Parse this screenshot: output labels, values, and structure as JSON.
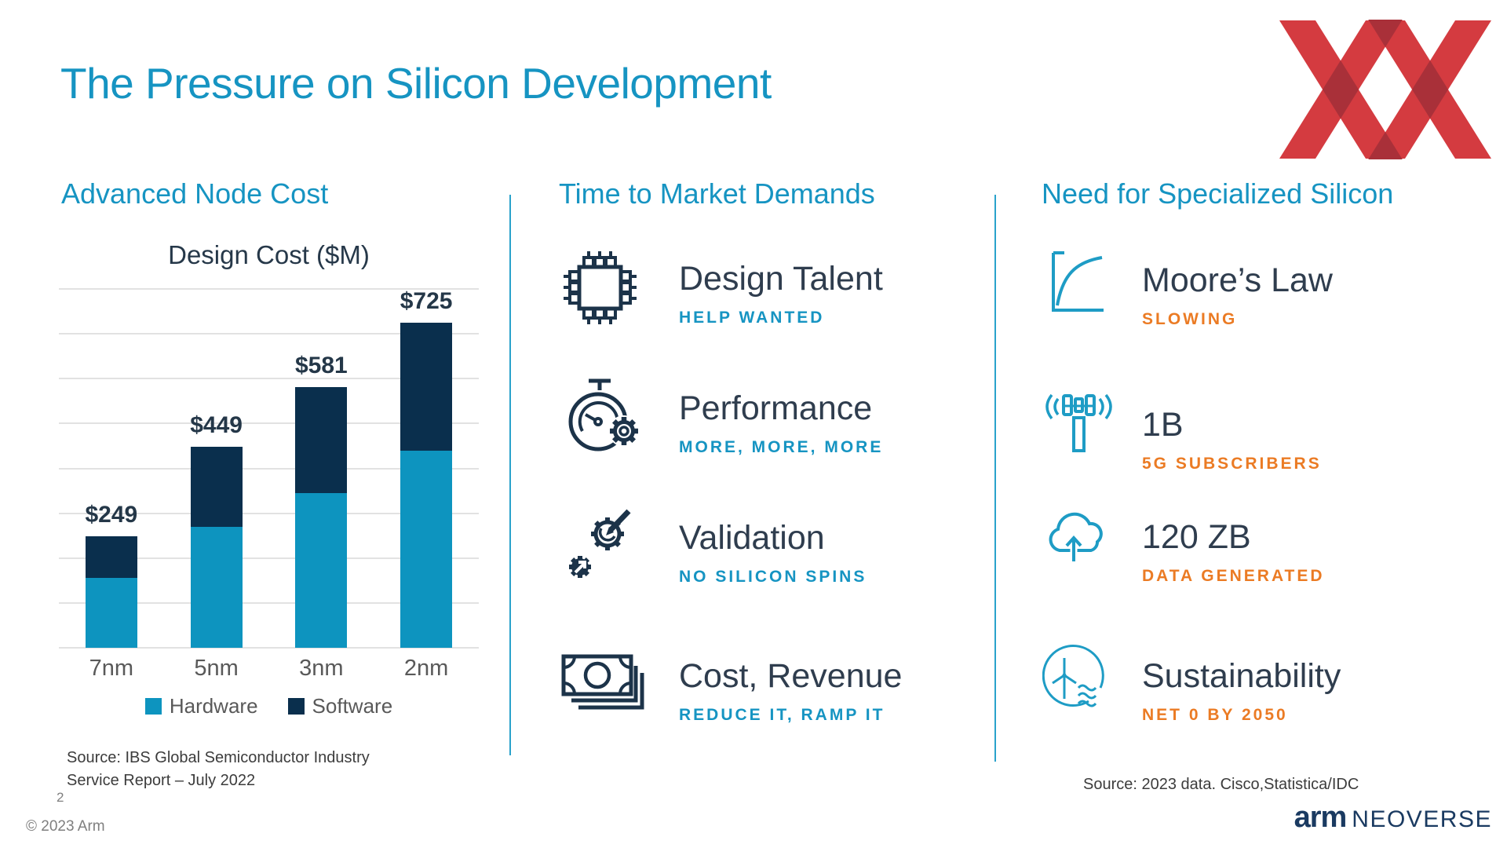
{
  "slide": {
    "title": "The Pressure on Silicon Development",
    "page_number": "2",
    "copyright": "© 2023 Arm",
    "brand": {
      "arm": "arm",
      "suffix": "NEOVERSE"
    }
  },
  "colors": {
    "accent_blue": "#1694C2",
    "dark_text": "#2F3D4E",
    "orange": "#EB7B24",
    "gray_text": "#595959",
    "footer_gray": "#7F7F7F",
    "divider": "#2AA2CB",
    "hardware_blue": "#0D94BF",
    "software_navy": "#0A2F4D",
    "logo_red": "#D43B40",
    "logo_red_overlap": "#A93039",
    "brand_navy": "#1A3A61"
  },
  "columns": {
    "left": {
      "heading": "Advanced Node Cost",
      "source_line1": "Source: IBS Global Semiconductor Industry",
      "source_line2": "Service Report – July 2022"
    },
    "middle": {
      "heading": "Time to Market Demands",
      "items": [
        {
          "icon": "chip-icon",
          "title": "Design Talent",
          "subtitle": "HELP WANTED"
        },
        {
          "icon": "stopwatch-gear-icon",
          "title": "Performance",
          "subtitle": "MORE, MORE, MORE"
        },
        {
          "icon": "validation-gears-icon",
          "title": "Validation",
          "subtitle": "NO SILICON SPINS"
        },
        {
          "icon": "banknotes-icon",
          "title": "Cost, Revenue",
          "subtitle": "REDUCE IT, RAMP IT"
        }
      ]
    },
    "right": {
      "heading": "Need for Specialized Silicon",
      "items": [
        {
          "icon": "growth-curve-icon",
          "title": "Moore’s Law",
          "subtitle": "SLOWING"
        },
        {
          "icon": "cell-tower-icon",
          "title": "1B",
          "subtitle": "5G SUBSCRIBERS"
        },
        {
          "icon": "cloud-upload-icon",
          "title": "120 ZB",
          "subtitle": "DATA GENERATED"
        },
        {
          "icon": "wind-turbine-waves-icon",
          "title": "Sustainability",
          "subtitle": "NET 0 BY 2050"
        }
      ],
      "source": "Source: 2023 data. Cisco,Statistica/IDC"
    }
  },
  "chart_data": {
    "type": "bar",
    "stacked": true,
    "title": "Design Cost ($M)",
    "categories": [
      "7nm",
      "5nm",
      "3nm",
      "2nm"
    ],
    "series": [
      {
        "name": "Hardware",
        "color": "#0D94BF",
        "values": [
          155,
          270,
          345,
          440
        ]
      },
      {
        "name": "Software",
        "color": "#0A2F4D",
        "values": [
          94,
          179,
          236,
          285
        ]
      }
    ],
    "totals": [
      249,
      449,
      581,
      725
    ],
    "total_labels": [
      "$249",
      "$449",
      "$581",
      "$725"
    ],
    "ylim": [
      0,
      800
    ],
    "gridline_step": 100,
    "grid": true,
    "legend_position": "bottom"
  }
}
